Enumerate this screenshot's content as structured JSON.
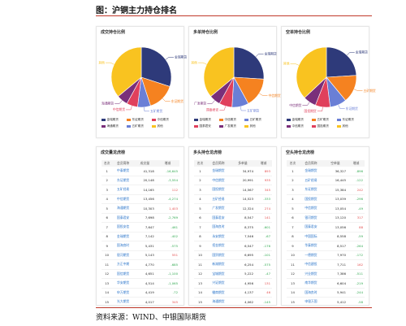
{
  "figure_title": "图：沪铜主力持仓排名",
  "source_text": "资料来源：WIND、中银国际期货",
  "chart_data": [
    {
      "type": "pie",
      "panel_title": "成交持仓比例",
      "slices": [
        {
          "name": "金瑞期货",
          "value": 30,
          "color": "#2e3a7a"
        },
        {
          "name": "东证期货",
          "value": 15,
          "color": "#f58220"
        },
        {
          "name": "五矿期货",
          "value": 7,
          "color": "#6a7fd6"
        },
        {
          "name": "中信期货",
          "value": 6,
          "color": "#e0405c"
        },
        {
          "name": "海通期货",
          "value": 6,
          "color": "#7a2f7a"
        },
        {
          "name": "其他",
          "value": 36,
          "color": "#f9c320"
        }
      ],
      "legend_placement": "bottom",
      "legend": [
        "金瑞期货",
        "东证期货",
        "中信期货",
        "海通期货",
        "五矿期货",
        "其他"
      ]
    },
    {
      "type": "pie",
      "panel_title": "多单持仓比例",
      "slices": [
        {
          "name": "金瑞期货",
          "value": 26,
          "color": "#2e3a7a"
        },
        {
          "name": "中信期货",
          "value": 16,
          "color": "#f58220"
        },
        {
          "name": "五矿期货",
          "value": 9,
          "color": "#6a7fd6"
        },
        {
          "name": "国泰君安",
          "value": 7,
          "color": "#e0405c"
        },
        {
          "name": "广发期货",
          "value": 6,
          "color": "#7a2f7a"
        },
        {
          "name": "其他",
          "value": 36,
          "color": "#f9c320"
        }
      ],
      "legend_placement": "bottom",
      "legend": [
        "金瑞期货",
        "中信期货",
        "五矿期货",
        "国泰君安",
        "广发期货",
        "其他"
      ]
    },
    {
      "type": "pie",
      "panel_title": "空单持仓比例",
      "slices": [
        {
          "name": "金瑞期货",
          "value": 24,
          "color": "#2e3a7a"
        },
        {
          "name": "五矿期货",
          "value": 15,
          "color": "#f58220"
        },
        {
          "name": "东证期货",
          "value": 9,
          "color": "#6a7fd6"
        },
        {
          "name": "国投期货",
          "value": 8,
          "color": "#e0405c"
        },
        {
          "name": "中信期货",
          "value": 7,
          "color": "#7a2f7a"
        },
        {
          "name": "其他",
          "value": 37,
          "color": "#f9c320"
        }
      ],
      "legend_placement": "bottom",
      "legend": [
        "金瑞期货",
        "五矿期货",
        "东证期货",
        "中信期货",
        "国投期货",
        "其他"
      ]
    },
    {
      "type": "table",
      "panel_title": "成交量龙虎榜",
      "columns": [
        "名次",
        "会员简称",
        "成交量",
        "增减"
      ],
      "rows": [
        [
          "1",
          "中泰期货",
          "41,318",
          "-16,645"
        ],
        [
          "2",
          "东证期货",
          "20,148",
          "-3,554"
        ],
        [
          "3",
          "五矿经易",
          "14,165",
          "112"
        ],
        [
          "4",
          "中信期货",
          "13,456",
          "-4,274"
        ],
        [
          "5",
          "海通期货",
          "10,303",
          "1,403"
        ],
        [
          "6",
          "国泰君安",
          "7,698",
          "-2,769"
        ],
        [
          "7",
          "国投安信",
          "7,647",
          "-461"
        ],
        [
          "8",
          "金瑞期货",
          "7,142",
          "-402"
        ],
        [
          "9",
          "国海良时",
          "5,431",
          "-575"
        ],
        [
          "10",
          "银河期货",
          "5,143",
          "551"
        ],
        [
          "11",
          "方正中期",
          "4,770",
          "-685"
        ],
        [
          "12",
          "国信期货",
          "4,651",
          "-1,100"
        ],
        [
          "13",
          "华安期货",
          "4,514",
          "-1,065"
        ],
        [
          "14",
          "申万期货",
          "4,419",
          "-72"
        ],
        [
          "15",
          "光大期货",
          "4,017",
          "345"
        ]
      ]
    },
    {
      "type": "table",
      "panel_title": "多头持仓龙虎榜",
      "columns": [
        "名次",
        "会员简称",
        "多单量",
        "增减"
      ],
      "rows": [
        [
          "1",
          "金瑞期货",
          "34,974",
          "893"
        ],
        [
          "2",
          "中信期货",
          "20,991",
          "935"
        ],
        [
          "3",
          "国投期货",
          "14,567",
          "345"
        ],
        [
          "4",
          "五矿经易",
          "14,523",
          "-333"
        ],
        [
          "5",
          "广发期货",
          "12,324",
          "274"
        ],
        [
          "6",
          "国泰君安",
          "8,547",
          "141"
        ],
        [
          "7",
          "国海良时",
          "8,375",
          "-601"
        ],
        [
          "8",
          "永安期货",
          "7,546",
          "-67"
        ],
        [
          "9",
          "招金期货",
          "6,547",
          "-176"
        ],
        [
          "10",
          "国贸期货",
          "6,695",
          "-101"
        ],
        [
          "11",
          "新湖期货",
          "6,254",
          "-575"
        ],
        [
          "12",
          "宝城期货",
          "5,222",
          "-47"
        ],
        [
          "13",
          "兴证期货",
          "4,956",
          "131"
        ],
        [
          "14",
          "徽商期货",
          "4,137",
          "46"
        ],
        [
          "15",
          "海通期货",
          "4,062",
          "-145"
        ]
      ]
    },
    {
      "type": "table",
      "panel_title": "空头持仓龙虎榜",
      "columns": [
        "名次",
        "会员简称",
        "空单量",
        "增减"
      ],
      "rows": [
        [
          "1",
          "金瑞期货",
          "36,327",
          "-896"
        ],
        [
          "2",
          "五矿经易",
          "16,445",
          "-122"
        ],
        [
          "3",
          "东证期货",
          "15,384",
          "242"
        ],
        [
          "4",
          "国投期货",
          "13,039",
          "-296"
        ],
        [
          "5",
          "中信期货",
          "13,054",
          "-49"
        ],
        [
          "6",
          "银河期货",
          "13,120",
          "317"
        ],
        [
          "7",
          "国泰君安",
          "13,056",
          "88"
        ],
        [
          "8",
          "中国国际",
          "8,558",
          "-59"
        ],
        [
          "9",
          "华泰期货",
          "8,517",
          "-264"
        ],
        [
          "10",
          "一德期货",
          "7,970",
          "-172"
        ],
        [
          "11",
          "中信建投",
          "7,711",
          "162"
        ],
        [
          "12",
          "兴业期货",
          "7,386",
          "-511"
        ],
        [
          "13",
          "南华期货",
          "6,604",
          "-219"
        ],
        [
          "14",
          "国海良时",
          "5,941",
          "-244"
        ],
        [
          "15",
          "申银万国",
          "5,412",
          "-58"
        ]
      ]
    }
  ]
}
